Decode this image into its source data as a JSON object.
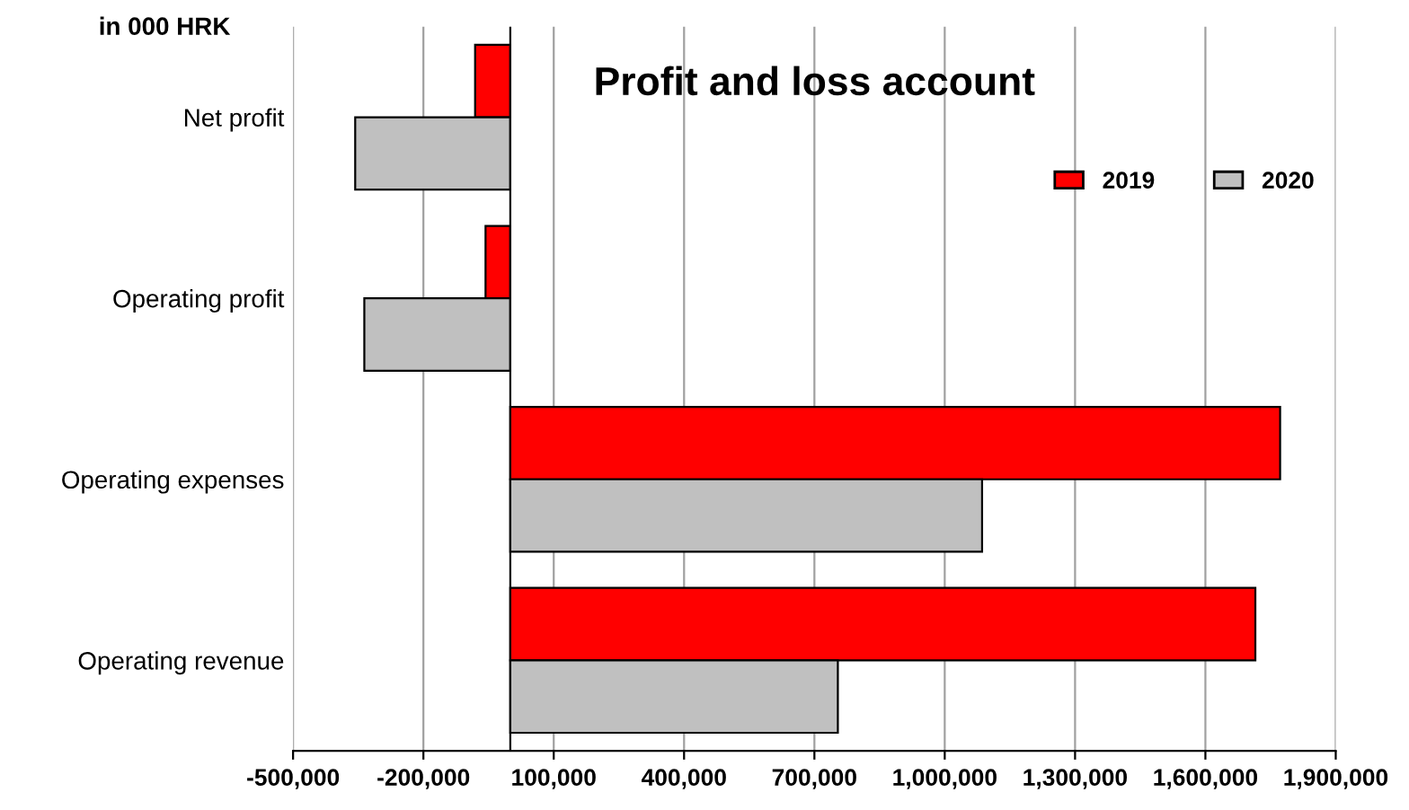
{
  "chart_data": {
    "type": "bar",
    "orientation": "horizontal",
    "title": "Profit and loss account",
    "annotations": [
      "in 000 HRK"
    ],
    "categories": [
      "Net profit",
      "Operating profit",
      "Operating expenses",
      "Operating revenue"
    ],
    "series": [
      {
        "name": "2019",
        "color": "#ff0000",
        "values": [
          -81000,
          -57000,
          1772000,
          1715000
        ]
      },
      {
        "name": "2020",
        "color": "#c0c0c0",
        "values": [
          -357000,
          -336000,
          1086000,
          754000
        ]
      }
    ],
    "xlim": [
      -500000,
      1900000
    ],
    "xticks": [
      {
        "value": -500000,
        "label": "-500,000"
      },
      {
        "value": -200000,
        "label": "-200,000"
      },
      {
        "value": 100000,
        "label": "100,000"
      },
      {
        "value": 400000,
        "label": "400,000"
      },
      {
        "value": 700000,
        "label": "700,000"
      },
      {
        "value": 1000000,
        "label": "1,000,000"
      },
      {
        "value": 1300000,
        "label": "1,300,000"
      },
      {
        "value": 1600000,
        "label": "1,600,000"
      },
      {
        "value": 1900000,
        "label": "1,900,000"
      }
    ],
    "grid": "x",
    "legend": "top right"
  }
}
